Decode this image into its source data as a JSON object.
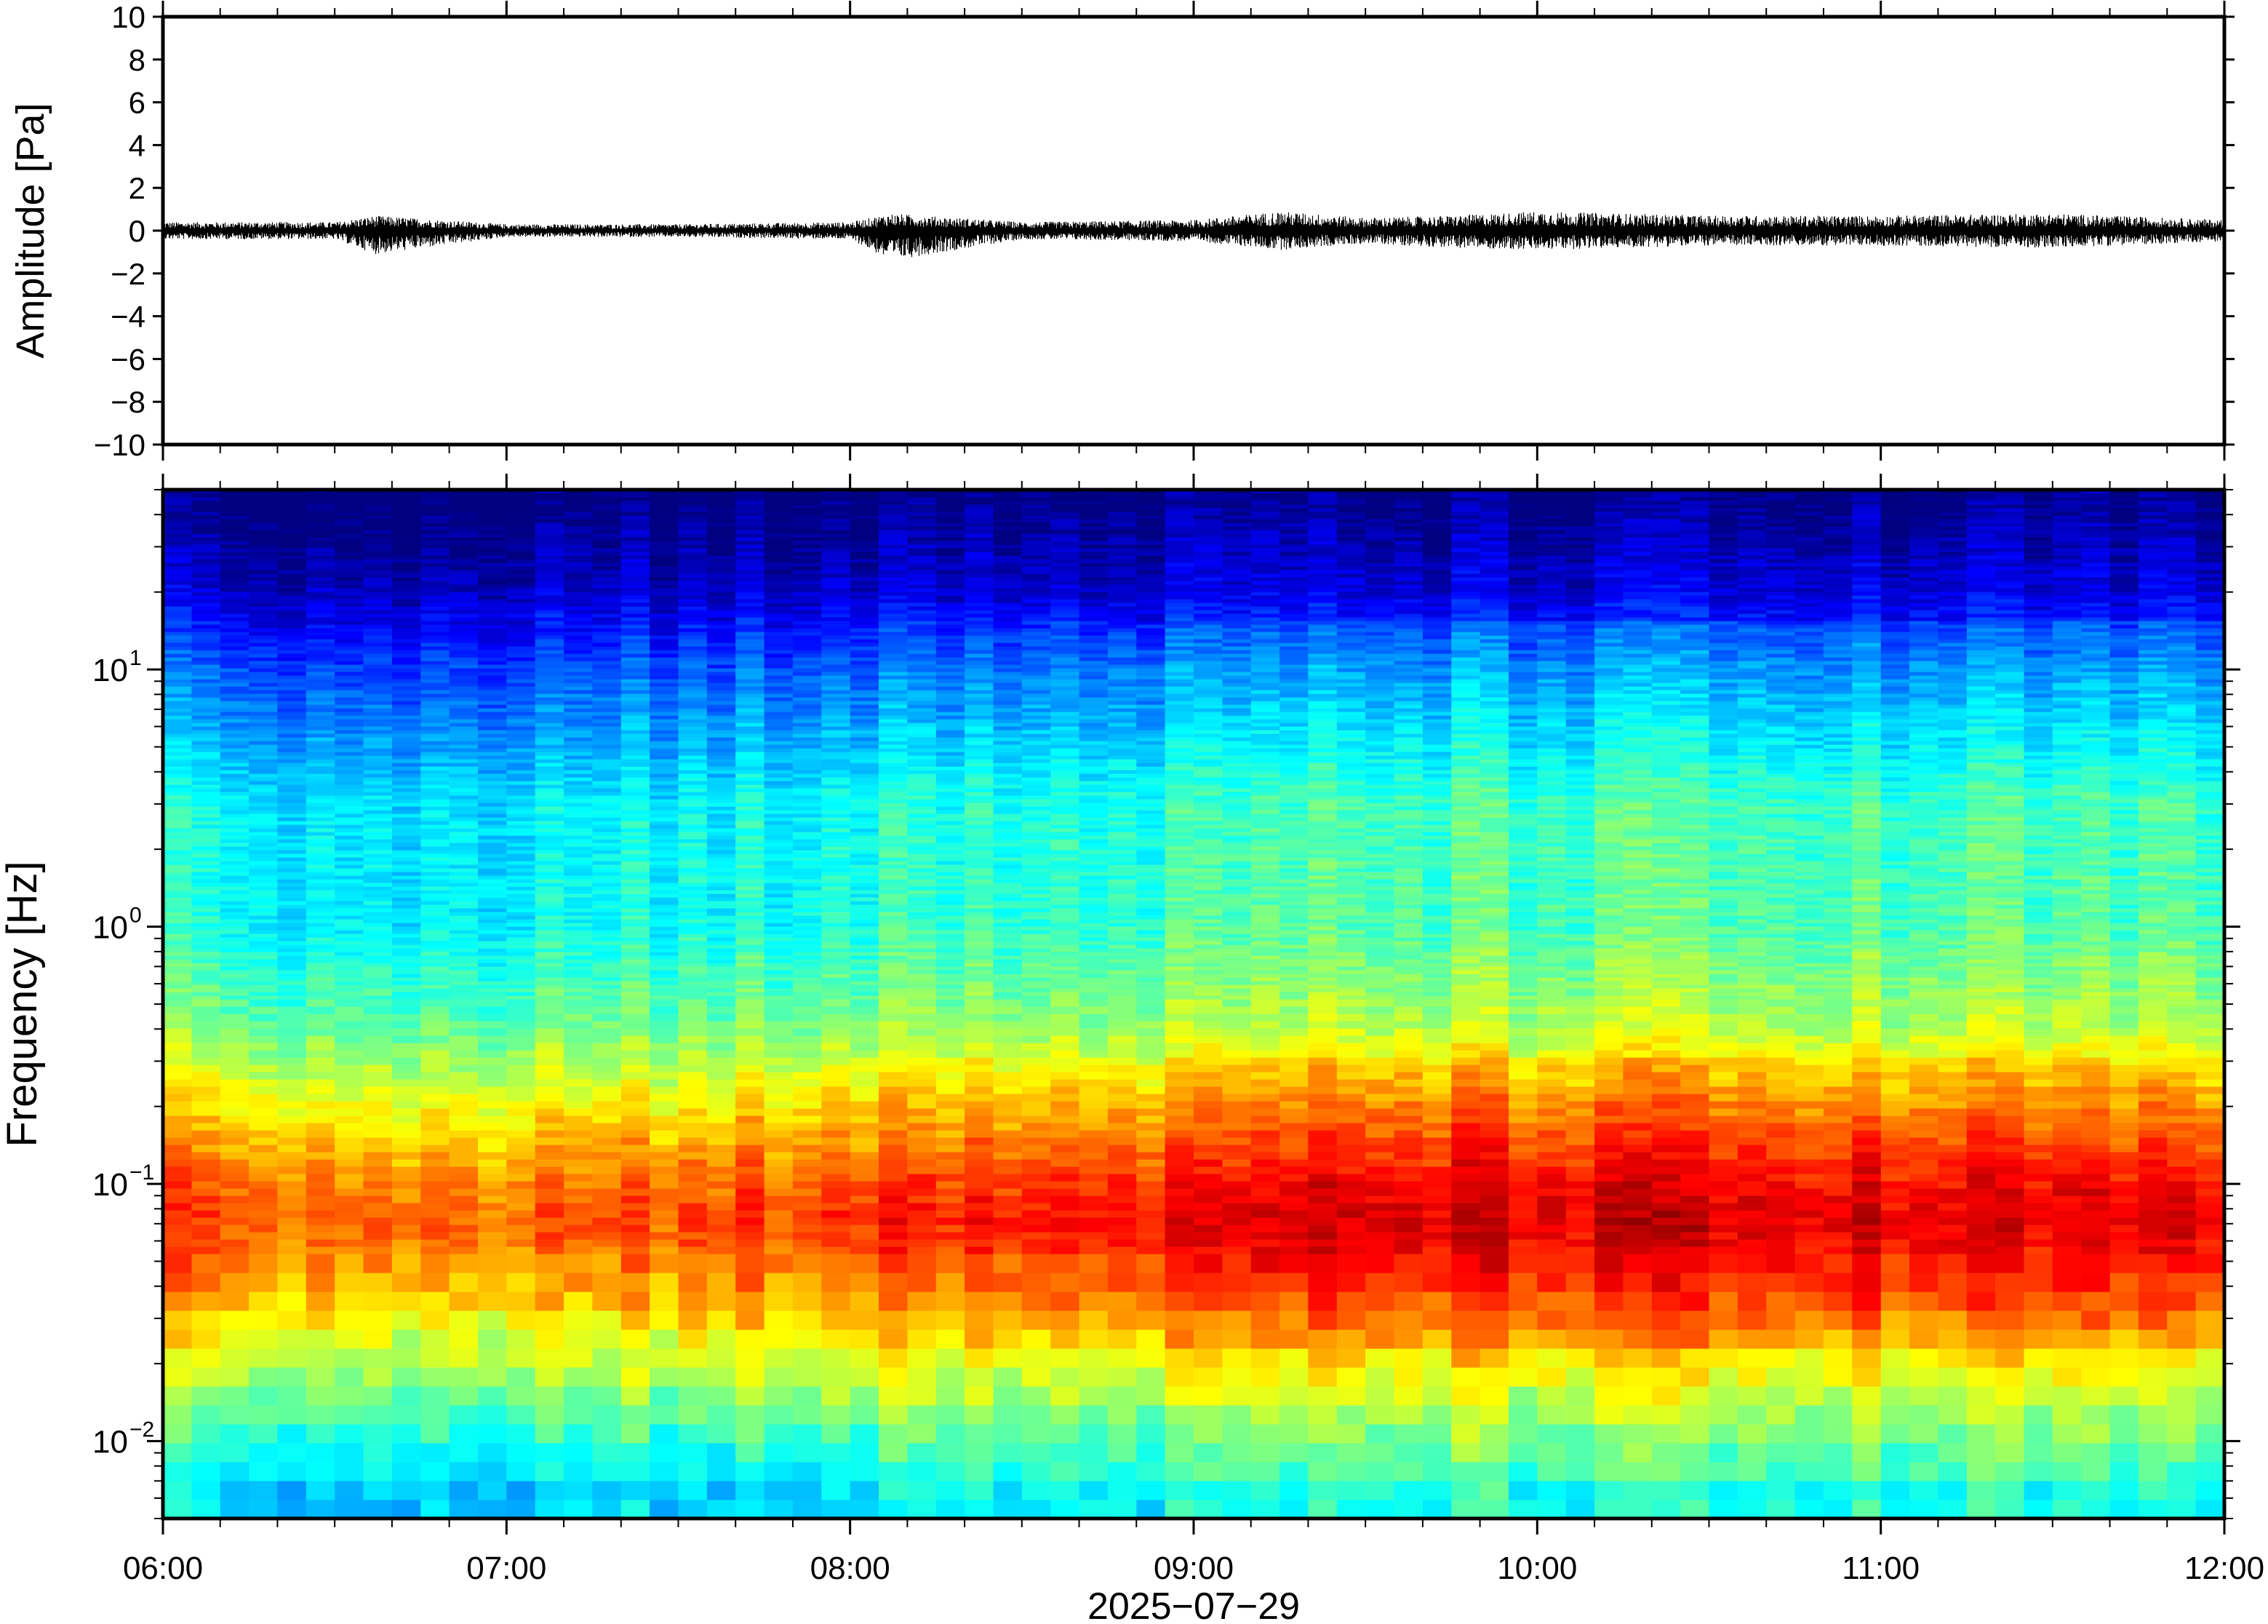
{
  "chart_data": [
    {
      "type": "line",
      "panel": "waveform",
      "title": "",
      "xlabel": "",
      "ylabel": "Amplitude [Pa]",
      "xlim": [
        "06:00",
        "12:00"
      ],
      "ylim": [
        -10,
        10
      ],
      "yticks": [
        10,
        8,
        6,
        4,
        2,
        0,
        -2,
        -4,
        -6,
        -8,
        -10
      ],
      "ytick_labels": [
        "10",
        "8",
        "6",
        "4",
        "2",
        "0",
        "−2",
        "−4",
        "−6",
        "−8",
        "−10"
      ],
      "grid": false,
      "line_color": "#000000",
      "series": [
        {
          "x_hours": [
            "06:00",
            "06:30",
            "06:37",
            "07:00",
            "07:30",
            "08:00",
            "08:07",
            "08:30",
            "09:00",
            "09:15",
            "09:30",
            "09:45",
            "10:00",
            "10:30",
            "11:00",
            "11:30",
            "12:00"
          ],
          "envelope_max": [
            0.4,
            0.4,
            0.7,
            0.3,
            0.3,
            0.4,
            0.8,
            0.4,
            0.5,
            0.9,
            0.6,
            0.7,
            0.9,
            0.7,
            0.7,
            0.8,
            0.5
          ],
          "envelope_min": [
            -0.4,
            -0.4,
            -1.1,
            -0.3,
            -0.3,
            -0.4,
            -1.4,
            -0.4,
            -0.5,
            -0.9,
            -0.6,
            -0.8,
            -0.9,
            -0.7,
            -0.7,
            -0.8,
            -0.5
          ]
        }
      ]
    },
    {
      "type": "heatmap",
      "panel": "spectrogram",
      "title": "",
      "xlabel": "2025−07−29",
      "ylabel": "Frequency [Hz]",
      "xlim": [
        "06:00",
        "12:00"
      ],
      "ylim": [
        0.005,
        50
      ],
      "yscale": "log",
      "yticks": [
        0.01,
        0.1,
        1,
        10
      ],
      "ytick_labels": [
        {
          "base": "10",
          "exp": "−2"
        },
        {
          "base": "10",
          "exp": "−1"
        },
        {
          "base": "10",
          "exp": "0"
        },
        {
          "base": "10",
          "exp": "1"
        }
      ],
      "xticks": [
        "06:00",
        "07:00",
        "08:00",
        "09:00",
        "10:00",
        "11:00",
        "12:00"
      ],
      "colormap": "jet",
      "grid": false,
      "relative_power_by_frequency": [
        {
          "freq": 0.006,
          "value": 0.35
        },
        {
          "freq": 0.01,
          "value": 0.45
        },
        {
          "freq": 0.02,
          "value": 0.6
        },
        {
          "freq": 0.04,
          "value": 0.75
        },
        {
          "freq": 0.07,
          "value": 0.82
        },
        {
          "freq": 0.1,
          "value": 0.78
        },
        {
          "freq": 0.2,
          "value": 0.65
        },
        {
          "freq": 0.4,
          "value": 0.5
        },
        {
          "freq": 1,
          "value": 0.4
        },
        {
          "freq": 3,
          "value": 0.38
        },
        {
          "freq": 10,
          "value": 0.22
        },
        {
          "freq": 20,
          "value": 0.08
        },
        {
          "freq": 45,
          "value": 0.0
        }
      ],
      "activity_by_time": [
        {
          "time": "06:00",
          "value": 0.0
        },
        {
          "time": "07:00",
          "value": -0.03
        },
        {
          "time": "08:00",
          "value": 0.02
        },
        {
          "time": "09:00",
          "value": 0.06
        },
        {
          "time": "09:30",
          "value": 0.1
        },
        {
          "time": "10:00",
          "value": 0.1
        },
        {
          "time": "11:00",
          "value": 0.09
        },
        {
          "time": "12:00",
          "value": 0.07
        }
      ]
    }
  ]
}
